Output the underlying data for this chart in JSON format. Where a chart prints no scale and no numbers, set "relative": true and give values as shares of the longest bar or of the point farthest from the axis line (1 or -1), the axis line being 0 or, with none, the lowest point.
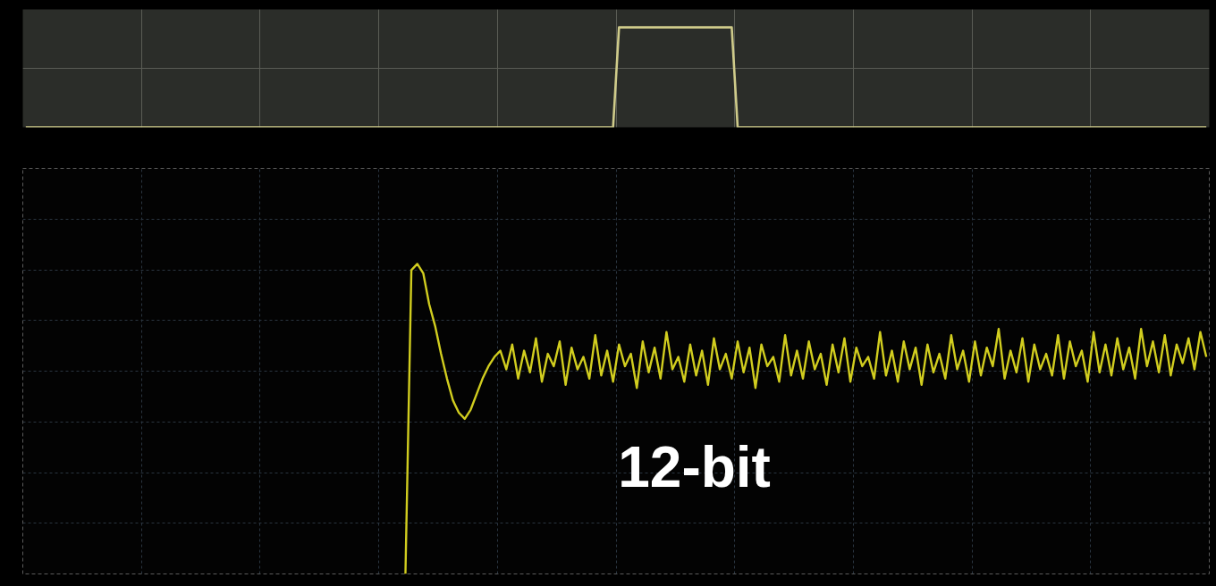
{
  "chart_data": [
    {
      "type": "line",
      "relative": true,
      "grid": true,
      "tick_labels": false,
      "color": "#cfcb8a",
      "categories": [
        null,
        null,
        null,
        null,
        null,
        null,
        null,
        null,
        null,
        null,
        null,
        null,
        null,
        null,
        null,
        null,
        null,
        null,
        null,
        null,
        null,
        null,
        null,
        null,
        null,
        null,
        null,
        null,
        null,
        null,
        null,
        null,
        null,
        null,
        null,
        null,
        null,
        null,
        null,
        null,
        null,
        null,
        null,
        null,
        null,
        null,
        null,
        null,
        null,
        null,
        null,
        null,
        null,
        null,
        null,
        null,
        null,
        null,
        null,
        null,
        null,
        null,
        null,
        null,
        null,
        null,
        null,
        null,
        null,
        null,
        null,
        null,
        null,
        null,
        null,
        null,
        null,
        null,
        null,
        null,
        null,
        null,
        null,
        null,
        null,
        null,
        null,
        null,
        null,
        null,
        null,
        null,
        null,
        null,
        null,
        null,
        null,
        null,
        null,
        null,
        null,
        null,
        null,
        null,
        null,
        null,
        null,
        null,
        null,
        null,
        null,
        null,
        null,
        null,
        null,
        null,
        null,
        null,
        null,
        null,
        null,
        null,
        null,
        null,
        null,
        null,
        null,
        null,
        null,
        null,
        null,
        null,
        null,
        null,
        null,
        null,
        null,
        null,
        null,
        null,
        null,
        null,
        null,
        null,
        null,
        null,
        null,
        null,
        null,
        null,
        null,
        null,
        null,
        null,
        null,
        null,
        null,
        null,
        null,
        null,
        null,
        null,
        null,
        null,
        null,
        null,
        null,
        null,
        null,
        null,
        null,
        null,
        null,
        null,
        null,
        null,
        null,
        null,
        null,
        null,
        null,
        null,
        null,
        null,
        null,
        null,
        null,
        null,
        null,
        null,
        null,
        null,
        null,
        null,
        null,
        null,
        null,
        null,
        null,
        null
      ],
      "values": [
        0,
        0,
        0,
        0,
        0,
        0,
        0,
        0,
        0,
        0,
        0,
        0,
        0,
        0,
        0,
        0,
        0,
        0,
        0,
        0,
        0,
        0,
        0,
        0,
        0,
        0,
        0,
        0,
        0,
        0,
        0,
        0,
        0,
        0,
        0,
        0,
        0,
        0,
        0,
        0,
        0,
        0,
        0,
        0,
        0,
        0,
        0,
        0,
        0,
        0,
        0,
        0,
        0,
        0,
        0,
        0,
        0,
        0,
        0,
        0,
        0,
        0,
        0,
        0,
        0,
        0,
        0,
        0,
        0,
        0,
        0,
        0,
        0,
        0,
        0,
        0,
        0,
        0,
        0,
        0,
        0,
        0,
        0,
        0,
        0,
        0,
        0,
        0,
        0,
        0,
        0,
        0,
        0,
        0,
        0,
        0,
        0,
        0,
        0,
        0,
        1,
        1,
        1,
        1,
        1,
        1,
        1,
        1,
        1,
        1,
        1,
        1,
        1,
        1,
        1,
        1,
        1,
        1,
        1,
        1,
        0,
        0,
        0,
        0,
        0,
        0,
        0,
        0,
        0,
        0,
        0,
        0,
        0,
        0,
        0,
        0,
        0,
        0,
        0,
        0,
        0,
        0,
        0,
        0,
        0,
        0,
        0,
        0,
        0,
        0,
        0,
        0,
        0,
        0,
        0,
        0,
        0,
        0,
        0,
        0,
        0,
        0,
        0,
        0,
        0,
        0,
        0,
        0,
        0,
        0,
        0,
        0,
        0,
        0,
        0,
        0,
        0,
        0,
        0,
        0,
        0,
        0,
        0,
        0,
        0,
        0,
        0,
        0,
        0,
        0,
        0,
        0,
        0,
        0,
        0,
        0,
        0,
        0,
        0,
        0
      ]
    },
    {
      "type": "line",
      "relative": true,
      "grid": true,
      "tick_labels": false,
      "color": "#d1cd1f",
      "annotations": [
        "12-bit"
      ],
      "categories": [
        null,
        null,
        null,
        null,
        null,
        null,
        null,
        null,
        null,
        null,
        null,
        null,
        null,
        null,
        null,
        null,
        null,
        null,
        null,
        null,
        null,
        null,
        null,
        null,
        null,
        null,
        null,
        null,
        null,
        null,
        null,
        null,
        null,
        null,
        null,
        null,
        null,
        null,
        null,
        null,
        null,
        null,
        null,
        null,
        null,
        null,
        null,
        null,
        null,
        null,
        null,
        null,
        null,
        null,
        null,
        null,
        null,
        null,
        null,
        null,
        null,
        null,
        null,
        null,
        null,
        null,
        null,
        null,
        null,
        null,
        null,
        null,
        null,
        null,
        null,
        null,
        null,
        null,
        null,
        null,
        null,
        null,
        null,
        null,
        null,
        null,
        null,
        null,
        null,
        null,
        null,
        null,
        null,
        null,
        null,
        null,
        null,
        null,
        null,
        null,
        null,
        null,
        null,
        null,
        null,
        null,
        null,
        null,
        null,
        null,
        null,
        null,
        null,
        null,
        null,
        null,
        null,
        null,
        null,
        null,
        null,
        null,
        null,
        null,
        null,
        null,
        null,
        null,
        null,
        null,
        null,
        null,
        null,
        null,
        null,
        null,
        null,
        null,
        null,
        null,
        null,
        null,
        null,
        null,
        null,
        null,
        null,
        null,
        null,
        null,
        null,
        null,
        null,
        null,
        null,
        null,
        null,
        null,
        null,
        null,
        null,
        null,
        null,
        null,
        null,
        null,
        null,
        null,
        null,
        null,
        null,
        null,
        null,
        null,
        null,
        null,
        null,
        null,
        null,
        null,
        null,
        null,
        null,
        null,
        null,
        null,
        null,
        null,
        null,
        null,
        null,
        null,
        null,
        null,
        null,
        null,
        null,
        null,
        null,
        null
      ],
      "values": [
        null,
        null,
        null,
        null,
        null,
        null,
        null,
        null,
        null,
        null,
        null,
        null,
        null,
        null,
        null,
        null,
        null,
        null,
        null,
        null,
        null,
        null,
        null,
        null,
        null,
        null,
        null,
        null,
        null,
        null,
        null,
        null,
        null,
        null,
        null,
        null,
        null,
        null,
        null,
        null,
        null,
        null,
        null,
        null,
        null,
        null,
        null,
        null,
        null,
        null,
        null,
        null,
        null,
        null,
        null,
        null,
        null,
        null,
        null,
        null,
        null,
        null,
        null,
        null,
        0,
        0.98,
        1.0,
        0.97,
        0.87,
        0.8,
        0.71,
        0.63,
        0.56,
        0.52,
        0.5,
        0.53,
        0.58,
        0.63,
        0.67,
        0.7,
        0.72,
        0.66,
        0.74,
        0.63,
        0.72,
        0.65,
        0.76,
        0.62,
        0.71,
        0.67,
        0.75,
        0.61,
        0.73,
        0.66,
        0.7,
        0.63,
        0.77,
        0.64,
        0.72,
        0.62,
        0.74,
        0.67,
        0.71,
        0.6,
        0.75,
        0.65,
        0.73,
        0.63,
        0.78,
        0.66,
        0.7,
        0.62,
        0.74,
        0.64,
        0.72,
        0.61,
        0.76,
        0.66,
        0.71,
        0.63,
        0.75,
        0.65,
        0.73,
        0.6,
        0.74,
        0.67,
        0.7,
        0.62,
        0.77,
        0.64,
        0.72,
        0.63,
        0.75,
        0.66,
        0.71,
        0.61,
        0.74,
        0.65,
        0.76,
        0.62,
        0.73,
        0.67,
        0.7,
        0.63,
        0.78,
        0.64,
        0.72,
        0.62,
        0.75,
        0.66,
        0.73,
        0.61,
        0.74,
        0.65,
        0.71,
        0.63,
        0.77,
        0.66,
        0.72,
        0.62,
        0.75,
        0.64,
        0.73,
        0.67,
        0.79,
        0.63,
        0.72,
        0.65,
        0.76,
        0.62,
        0.74,
        0.66,
        0.71,
        0.64,
        0.77,
        0.63,
        0.75,
        0.67,
        0.72,
        0.62,
        0.78,
        0.65,
        0.74,
        0.64,
        0.76,
        0.66,
        0.73,
        0.63,
        0.79,
        0.67,
        0.75,
        0.65,
        0.77,
        0.64,
        0.74,
        0.68,
        0.76,
        0.66,
        0.78,
        0.7
      ]
    }
  ]
}
